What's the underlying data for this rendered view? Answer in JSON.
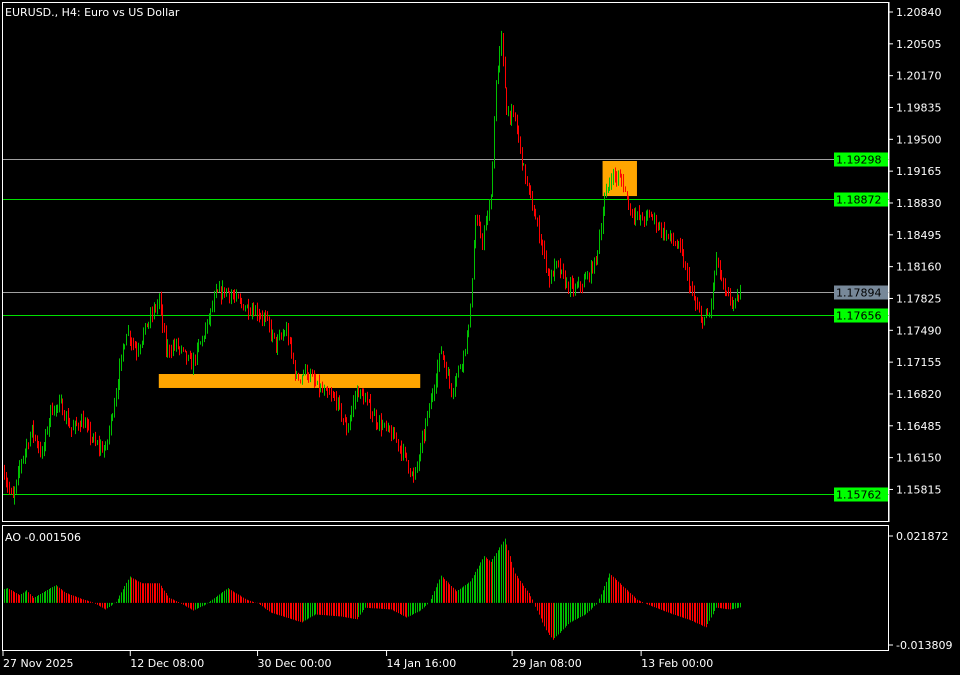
{
  "header": {
    "title": "EURUSD., H4:  Euro vs US Dollar"
  },
  "indicator": {
    "label": "AO -0.001506",
    "axis_max_label": "0.021872",
    "axis_min_label": "-0.013809"
  },
  "colors": {
    "background": "#000000",
    "axis": "#ffffff",
    "bull": "#00c000",
    "bear": "#ff0000",
    "level_line": "#00e000",
    "level_label_bg": "#00ff00",
    "gray_line": "#a0a0a0",
    "price_label_bg": "#778899",
    "zone": "#ffa500"
  },
  "chart_data": {
    "type": "candlestick",
    "symbol": "EURUSD.",
    "timeframe": "H4",
    "ylim": [
      1.1545,
      1.2095
    ],
    "y_ticks": [
      "1.20840",
      "1.20505",
      "1.20170",
      "1.19835",
      "1.19500",
      "1.19165",
      "1.18830",
      "1.18495",
      "1.18160",
      "1.17825",
      "1.17490",
      "1.17155",
      "1.16820",
      "1.16485",
      "1.16150",
      "1.15815"
    ],
    "x_ticks": [
      {
        "bar": 0,
        "label": "27 Nov 2025"
      },
      {
        "bar": 74,
        "label": "12 Dec 08:00"
      },
      {
        "bar": 148,
        "label": "30 Dec 00:00"
      },
      {
        "bar": 223,
        "label": "14 Jan 16:00"
      },
      {
        "bar": 296,
        "label": "29 Jan 08:00"
      },
      {
        "bar": 371,
        "label": "13 Feb 00:00"
      }
    ],
    "bar_count": 429,
    "close_path": [
      [
        0,
        1.16
      ],
      [
        1,
        1.15914
      ],
      [
        5,
        1.15704
      ],
      [
        10,
        1.16125
      ],
      [
        16,
        1.16441
      ],
      [
        22,
        1.16177
      ],
      [
        27,
        1.16651
      ],
      [
        33,
        1.16704
      ],
      [
        39,
        1.16441
      ],
      [
        45,
        1.16546
      ],
      [
        53,
        1.16283
      ],
      [
        59,
        1.1623
      ],
      [
        65,
        1.16862
      ],
      [
        71,
        1.17493
      ],
      [
        77,
        1.17283
      ],
      [
        83,
        1.17546
      ],
      [
        90,
        1.17809
      ],
      [
        94,
        1.17283
      ],
      [
        100,
        1.17335
      ],
      [
        109,
        1.17125
      ],
      [
        117,
        1.17493
      ],
      [
        123,
        1.17861
      ],
      [
        129,
        1.17914
      ],
      [
        138,
        1.17756
      ],
      [
        146,
        1.17704
      ],
      [
        152,
        1.17598
      ],
      [
        158,
        1.17335
      ],
      [
        164,
        1.17493
      ],
      [
        170,
        1.16967
      ],
      [
        175,
        1.17072
      ],
      [
        181,
        1.16914
      ],
      [
        187,
        1.16809
      ],
      [
        193,
        1.16756
      ],
      [
        199,
        1.16441
      ],
      [
        205,
        1.16862
      ],
      [
        210,
        1.16756
      ],
      [
        216,
        1.16546
      ],
      [
        222,
        1.16441
      ],
      [
        228,
        1.16335
      ],
      [
        234,
        1.16125
      ],
      [
        238,
        1.15914
      ],
      [
        242,
        1.1623
      ],
      [
        248,
        1.16756
      ],
      [
        254,
        1.17283
      ],
      [
        260,
        1.16862
      ],
      [
        266,
        1.17178
      ],
      [
        270,
        1.17493
      ],
      [
        274,
        1.18651
      ],
      [
        278,
        1.1844
      ],
      [
        283,
        1.18861
      ],
      [
        286,
        1.20124
      ],
      [
        289,
        1.20545
      ],
      [
        292,
        1.19809
      ],
      [
        297,
        1.19703
      ],
      [
        302,
        1.19177
      ],
      [
        306,
        1.18861
      ],
      [
        312,
        1.1844
      ],
      [
        317,
        1.18019
      ],
      [
        321,
        1.18177
      ],
      [
        327,
        1.17967
      ],
      [
        332,
        1.17914
      ],
      [
        338,
        1.18019
      ],
      [
        344,
        1.1823
      ],
      [
        349,
        1.18861
      ],
      [
        353,
        1.19124
      ],
      [
        359,
        1.19072
      ],
      [
        364,
        1.18756
      ],
      [
        370,
        1.18651
      ],
      [
        376,
        1.18703
      ],
      [
        382,
        1.18546
      ],
      [
        388,
        1.1844
      ],
      [
        393,
        1.18335
      ],
      [
        399,
        1.17914
      ],
      [
        405,
        1.17598
      ],
      [
        410,
        1.17651
      ],
      [
        414,
        1.1823
      ],
      [
        419,
        1.17861
      ],
      [
        425,
        1.17756
      ],
      [
        428,
        1.17894
      ]
    ],
    "levels": [
      {
        "price": 1.19298,
        "label": "1.19298",
        "line": "gray",
        "label_style": "green"
      },
      {
        "price": 1.18872,
        "label": "1.18872",
        "line": "green",
        "label_style": "green"
      },
      {
        "price": 1.17894,
        "label": "1.17894",
        "line": "gray",
        "label_style": "gray"
      },
      {
        "price": 1.17656,
        "label": "1.17656",
        "line": "green",
        "label_style": "green"
      },
      {
        "price": 1.15762,
        "label": "1.15762",
        "line": "green",
        "label_style": "green"
      }
    ],
    "zones": [
      {
        "bar_from": 90,
        "bar_to": 242,
        "price_top": 1.1703,
        "price_bottom": 1.16883
      },
      {
        "bar_from": 348,
        "bar_to": 368,
        "price_top": 1.19272,
        "price_bottom": 1.18903
      }
    ],
    "ao": {
      "name": "AO",
      "ylim": [
        -0.013809,
        0.021872
      ],
      "path": [
        [
          0,
          0.0045
        ],
        [
          2,
          0.0048
        ],
        [
          9,
          0.0025
        ],
        [
          13,
          0.0041
        ],
        [
          17,
          0.0016
        ],
        [
          30,
          0.0058
        ],
        [
          36,
          0.0032
        ],
        [
          45,
          0.0013
        ],
        [
          52,
          0
        ],
        [
          59,
          -0.0022
        ],
        [
          65,
          0.0003
        ],
        [
          73,
          0.0086
        ],
        [
          80,
          0.0064
        ],
        [
          90,
          0.0064
        ],
        [
          96,
          0.0016
        ],
        [
          102,
          0
        ],
        [
          110,
          -0.0025
        ],
        [
          117,
          -0.0006
        ],
        [
          130,
          0.0048
        ],
        [
          141,
          0.001
        ],
        [
          148,
          -0.0003
        ],
        [
          155,
          -0.0032
        ],
        [
          173,
          -0.0064
        ],
        [
          181,
          -0.0038
        ],
        [
          196,
          -0.0045
        ],
        [
          205,
          -0.0054
        ],
        [
          210,
          -0.0016
        ],
        [
          225,
          -0.0022
        ],
        [
          234,
          -0.0048
        ],
        [
          242,
          -0.0025
        ],
        [
          247,
          0
        ],
        [
          254,
          0.0089
        ],
        [
          263,
          0.0038
        ],
        [
          271,
          0.007
        ],
        [
          279,
          0.0153
        ],
        [
          283,
          0.0134
        ],
        [
          291,
          0.021
        ],
        [
          297,
          0.0096
        ],
        [
          305,
          0.0032
        ],
        [
          308,
          0
        ],
        [
          315,
          -0.009
        ],
        [
          319,
          -0.0121
        ],
        [
          329,
          -0.0064
        ],
        [
          338,
          -0.0038
        ],
        [
          345,
          0
        ],
        [
          352,
          0.0096
        ],
        [
          358,
          0.0064
        ],
        [
          368,
          0.001
        ],
        [
          376,
          -0.001
        ],
        [
          389,
          -0.0038
        ],
        [
          399,
          -0.0057
        ],
        [
          408,
          -0.008
        ],
        [
          414,
          -0.0016
        ],
        [
          422,
          -0.0022
        ],
        [
          428,
          -0.0015
        ]
      ]
    }
  }
}
